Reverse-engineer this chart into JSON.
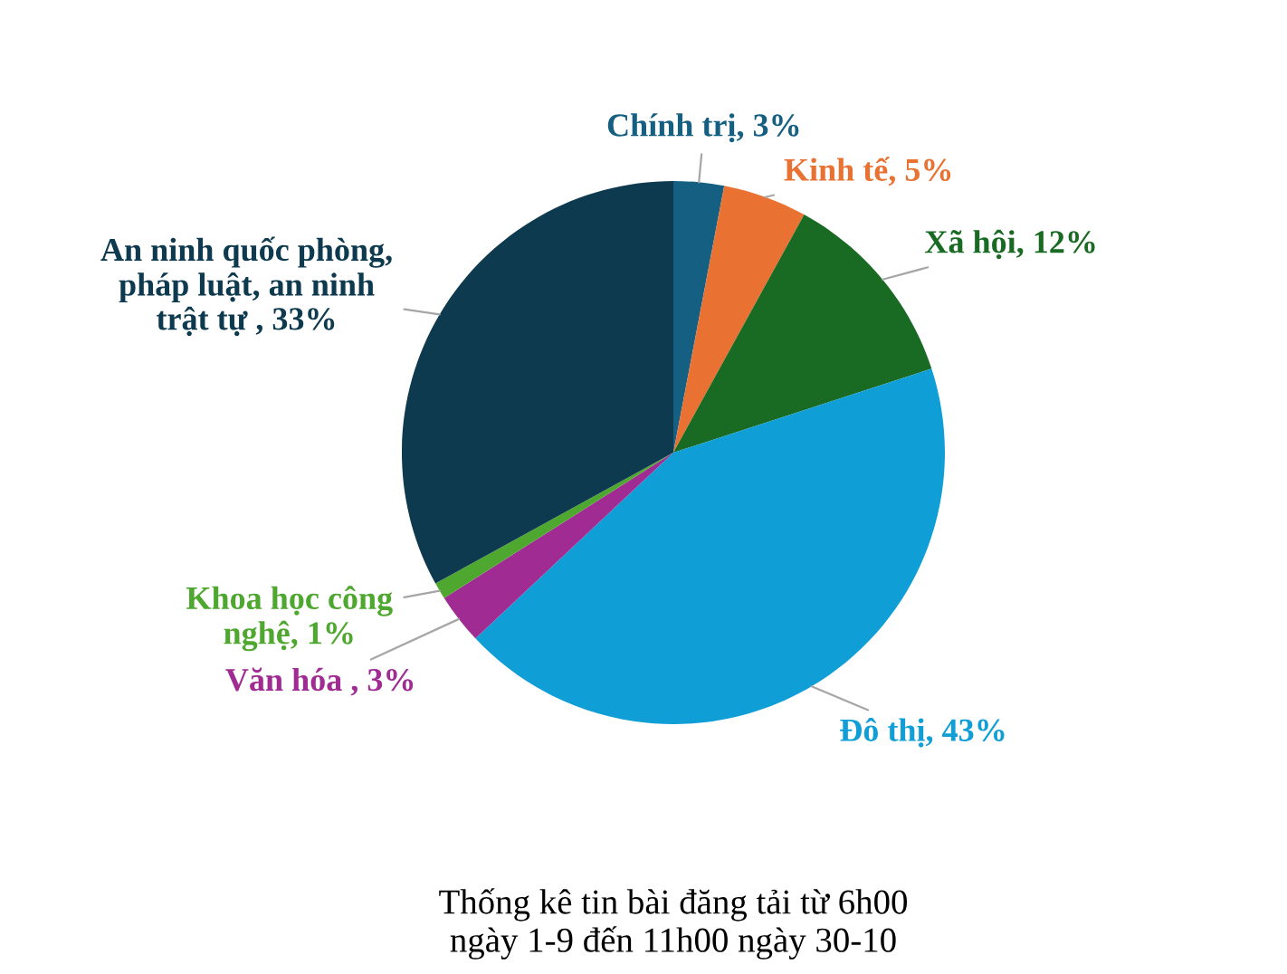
{
  "chart_data": {
    "type": "pie",
    "categories": [
      "Chính trị",
      "Kinh tế",
      "Xã hội",
      "Đô thị",
      "Văn hóa ",
      "Khoa học công\nnghệ",
      "An ninh quốc phòng,\npháp luật, an ninh\ntrật tự "
    ],
    "values": [
      3,
      5,
      12,
      43,
      3,
      1,
      33
    ],
    "colors": [
      "#156082",
      "#e97132",
      "#196b24",
      "#0f9ed5",
      "#a02b93",
      "#4ea72e",
      "#0d3a4e"
    ],
    "value_labels": [
      "3%",
      "5%",
      "12%",
      "43%",
      "3%",
      "1%",
      "33%"
    ],
    "annotations": [
      "Thống kê tin bài đăng tải từ 6h00\nngày 1-9 đến 11h00 ngày 30-10"
    ]
  }
}
